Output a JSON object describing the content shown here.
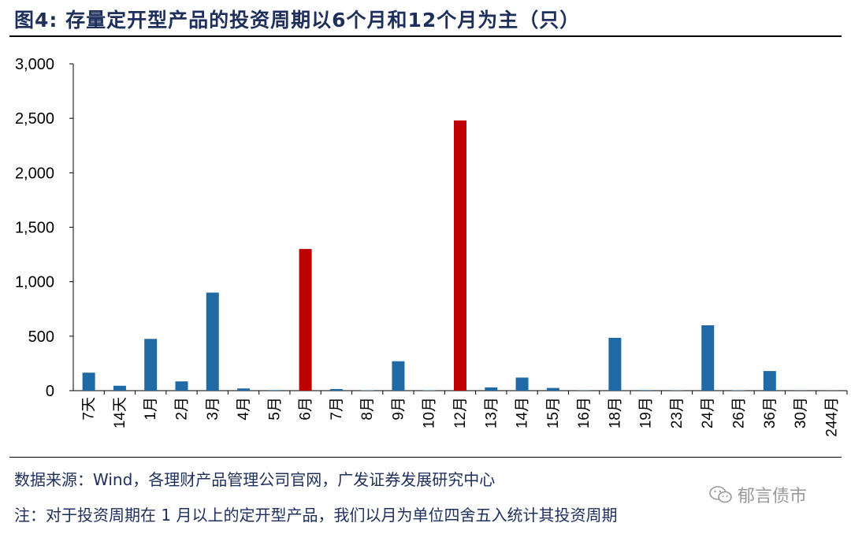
{
  "header": {
    "title": "图4: 存量定开型产品的投资周期以6个月和12个月为主（只）"
  },
  "footer": {
    "source": "数据来源：Wind，各理财产品管理公司官网，广发证券发展研究中心",
    "note": "注：对于投资周期在 1 月以上的定开型产品，我们以月为单位四舍五入统计其投资周期",
    "watermark": "郁言债市",
    "watermark_icon": "wechat-icon"
  },
  "chart_data": {
    "type": "bar",
    "title": "图4: 存量定开型产品的投资周期以6个月和12个月为主（只）",
    "xlabel": "",
    "ylabel": "",
    "ylim": [
      0,
      3000
    ],
    "yticks": [
      0,
      500,
      1000,
      1500,
      2000,
      2500,
      3000
    ],
    "ytick_labels": [
      "0",
      "500",
      "1,000",
      "1,500",
      "2,000",
      "2,500",
      "3,000"
    ],
    "grid": false,
    "categories": [
      "7天",
      "14天",
      "1月",
      "2月",
      "3月",
      "4月",
      "5月",
      "6月",
      "7月",
      "8月",
      "9月",
      "10月",
      "12月",
      "13月",
      "14月",
      "15月",
      "16月",
      "18月",
      "19月",
      "23月",
      "24月",
      "26月",
      "36月",
      "30月",
      "244月"
    ],
    "values": [
      165,
      45,
      475,
      85,
      900,
      20,
      5,
      1300,
      15,
      3,
      270,
      3,
      2480,
      30,
      120,
      25,
      2,
      485,
      5,
      2,
      600,
      3,
      180,
      1,
      1
    ],
    "colors": {
      "default": "#1f6aa5",
      "highlight": "#c00000"
    },
    "highlight_categories": [
      "6月",
      "12月"
    ]
  }
}
